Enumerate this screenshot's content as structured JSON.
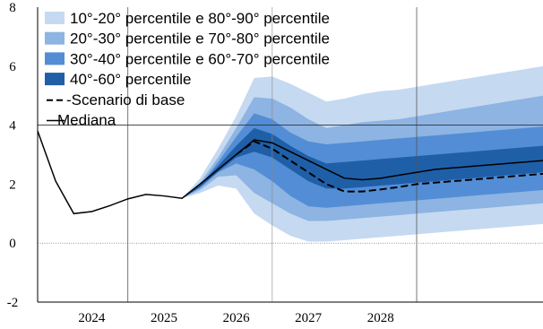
{
  "chart_data": {
    "type": "area",
    "ylim": [
      -2,
      8
    ],
    "yticks": [
      -2,
      0,
      2,
      4,
      6,
      8
    ],
    "xlim": [
      0,
      28
    ],
    "x_tick_labels": [
      {
        "label": "2024",
        "x": 3
      },
      {
        "label": "2025",
        "x": 7
      },
      {
        "label": "2026",
        "x": 11
      },
      {
        "label": "2027",
        "x": 15
      },
      {
        "label": "2028",
        "x": 19
      }
    ],
    "vertical_gridlines_x": [
      5,
      13,
      21
    ],
    "reference_lines_y": [
      0,
      4
    ],
    "legend": [
      {
        "label": "10°-20° percentile e 80°-90° percentile",
        "color": "#c5d9f1",
        "kind": "swatch"
      },
      {
        "label": "20°-30° percentile e 70°-80° percentile",
        "color": "#8db4e2",
        "kind": "swatch"
      },
      {
        "label": "30°-40° percentile e 60°-70° percentile",
        "color": "#538dd5",
        "kind": "swatch"
      },
      {
        "label": "40°-60° percentile",
        "color": "#1f5fa8",
        "kind": "swatch"
      },
      {
        "label": "-Scenario di base",
        "color": "#000000",
        "kind": "dashed"
      },
      {
        "label": "Mediana",
        "color": "#000000",
        "kind": "line"
      }
    ],
    "series": [
      {
        "name": "Mediana",
        "x": [
          0,
          1,
          2,
          3,
          4,
          5,
          6,
          7,
          8,
          9,
          10,
          11,
          12,
          13,
          14,
          15,
          16,
          17,
          18,
          19,
          20,
          21,
          22,
          23,
          24,
          25,
          26,
          27,
          28
        ],
        "values": [
          3.8,
          2.1,
          1.0,
          1.07,
          1.27,
          1.5,
          1.65,
          1.6,
          1.52,
          2.0,
          2.5,
          3.0,
          3.5,
          3.4,
          3.1,
          2.8,
          2.5,
          2.2,
          2.15,
          2.2,
          2.3,
          2.4,
          2.5,
          2.55,
          2.6,
          2.65,
          2.7,
          2.75,
          2.8
        ]
      },
      {
        "name": "Scenario di base",
        "x": [
          11,
          12,
          13,
          14,
          15,
          16,
          17,
          18,
          19,
          20,
          21,
          22,
          23,
          24,
          25,
          26,
          27,
          28
        ],
        "values": [
          3.0,
          3.45,
          3.2,
          2.8,
          2.4,
          2.0,
          1.75,
          1.75,
          1.82,
          1.9,
          2.0,
          2.05,
          2.1,
          2.15,
          2.2,
          2.25,
          2.3,
          2.35
        ]
      }
    ],
    "bands": [
      {
        "name": "10°-20° percentile e 80°-90° percentile",
        "color": "#c5d9f1",
        "x": [
          8,
          9,
          10,
          11,
          12,
          13,
          14,
          15,
          16,
          17,
          18,
          19,
          20,
          21,
          22,
          23,
          24,
          25,
          26,
          27,
          28
        ],
        "upper": [
          1.52,
          2.2,
          3.2,
          4.3,
          5.6,
          5.65,
          5.4,
          5.1,
          4.8,
          4.9,
          5.05,
          5.15,
          5.2,
          5.3,
          5.4,
          5.5,
          5.6,
          5.7,
          5.8,
          5.9,
          6.0
        ],
        "lower": [
          1.52,
          1.7,
          1.95,
          1.85,
          1.0,
          0.6,
          0.25,
          0.05,
          0.05,
          0.1,
          0.15,
          0.2,
          0.25,
          0.3,
          0.35,
          0.4,
          0.45,
          0.5,
          0.55,
          0.6,
          0.65
        ]
      },
      {
        "name": "20°-30° percentile e 70°-80° percentile",
        "color": "#8db4e2",
        "x": [
          8,
          9,
          10,
          11,
          12,
          13,
          14,
          15,
          16,
          17,
          18,
          19,
          20,
          21,
          22,
          23,
          24,
          25,
          26,
          27,
          28
        ],
        "upper": [
          1.52,
          2.05,
          2.9,
          3.9,
          4.95,
          4.9,
          4.6,
          4.2,
          3.9,
          4.0,
          4.1,
          4.15,
          4.2,
          4.3,
          4.4,
          4.5,
          4.6,
          4.7,
          4.8,
          4.9,
          5.0
        ],
        "lower": [
          1.52,
          1.8,
          2.25,
          2.3,
          1.7,
          1.35,
          1.0,
          0.75,
          0.75,
          0.8,
          0.85,
          0.9,
          0.95,
          1.0,
          1.05,
          1.1,
          1.15,
          1.2,
          1.25,
          1.3,
          1.35
        ]
      },
      {
        "name": "30°-40° percentile e 60°-70° percentile",
        "color": "#538dd5",
        "x": [
          8,
          9,
          10,
          11,
          12,
          13,
          14,
          15,
          16,
          17,
          18,
          19,
          20,
          21,
          22,
          23,
          24,
          25,
          26,
          27,
          28
        ],
        "upper": [
          1.52,
          1.95,
          2.75,
          3.6,
          4.4,
          4.2,
          3.75,
          3.45,
          3.35,
          3.4,
          3.45,
          3.5,
          3.55,
          3.6,
          3.65,
          3.7,
          3.75,
          3.8,
          3.85,
          3.9,
          3.95
        ],
        "lower": [
          1.52,
          1.88,
          2.4,
          2.7,
          2.5,
          2.1,
          1.6,
          1.25,
          1.2,
          1.25,
          1.3,
          1.35,
          1.4,
          1.45,
          1.5,
          1.55,
          1.6,
          1.65,
          1.7,
          1.75,
          1.8
        ]
      },
      {
        "name": "40°-60° percentile",
        "color": "#1f5fa8",
        "x": [
          8,
          9,
          10,
          11,
          12,
          13,
          14,
          15,
          16,
          17,
          18,
          19,
          20,
          21,
          22,
          23,
          24,
          25,
          26,
          27,
          28
        ],
        "upper": [
          1.52,
          1.97,
          2.62,
          3.3,
          3.9,
          3.7,
          3.3,
          2.95,
          2.7,
          2.75,
          2.8,
          2.85,
          2.9,
          2.95,
          3.0,
          3.05,
          3.1,
          3.15,
          3.2,
          3.25,
          3.3
        ],
        "lower": [
          1.52,
          1.9,
          2.42,
          2.9,
          3.1,
          2.9,
          2.5,
          2.1,
          1.85,
          1.85,
          1.9,
          1.95,
          2.0,
          2.05,
          2.1,
          2.15,
          2.2,
          2.25,
          2.3,
          2.35,
          2.4
        ]
      }
    ]
  }
}
